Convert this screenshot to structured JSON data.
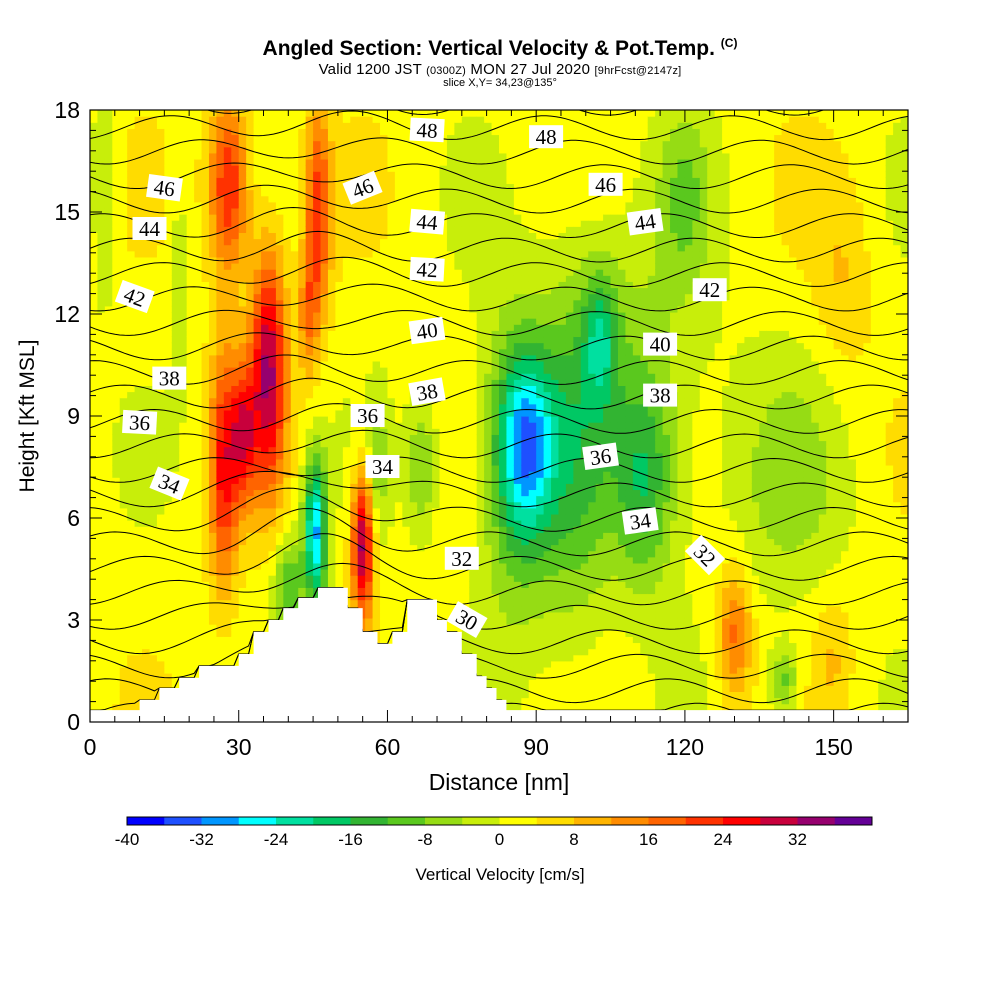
{
  "title": {
    "main": "Angled Section: Vertical Velocity & Pot.Temp.",
    "copyright": "(C)",
    "valid_prefix": "Valid 1200 JST",
    "valid_zulu": "(0300Z)",
    "valid_date": "MON 27 Jul 2020",
    "forecast": "[9hrFcst@2147z]",
    "slice": "slice X,Y= 34,23@135°"
  },
  "chart_data": {
    "type": "heatmap",
    "xlabel": "Distance [nm]",
    "ylabel": "Height [Kft MSL]",
    "xlim": [
      0,
      165
    ],
    "ylim": [
      0,
      18
    ],
    "x_ticks": [
      0,
      30,
      60,
      90,
      120,
      150
    ],
    "y_ticks": [
      0,
      3,
      6,
      9,
      12,
      15,
      18
    ],
    "colorbar": {
      "label": "Vertical Velocity [cm/s]",
      "ticks": [
        -40,
        -32,
        -24,
        -16,
        -8,
        0,
        8,
        16,
        24,
        32
      ],
      "levels": [
        -40,
        -36,
        -32,
        -28,
        -24,
        -20,
        -16,
        -12,
        -8,
        -4,
        0,
        4,
        8,
        12,
        16,
        20,
        24,
        28,
        32,
        36
      ],
      "colors": [
        "#0000ff",
        "#1e50ff",
        "#0096ff",
        "#00ffff",
        "#00e0a0",
        "#00c864",
        "#32b432",
        "#5ac81e",
        "#96dc14",
        "#c8ee0a",
        "#ffff00",
        "#ffdc00",
        "#ffb400",
        "#ff8c00",
        "#ff6400",
        "#ff3200",
        "#ff0000",
        "#c8003c",
        "#96006e",
        "#640096"
      ]
    },
    "terrain_profile": [
      [
        0,
        0.35
      ],
      [
        10,
        0.35
      ],
      [
        10,
        0.65
      ],
      [
        14,
        0.65
      ],
      [
        14,
        1
      ],
      [
        18,
        1
      ],
      [
        18,
        1.3
      ],
      [
        22,
        1.3
      ],
      [
        22,
        1.65
      ],
      [
        30,
        1.65
      ],
      [
        30,
        2
      ],
      [
        33,
        2
      ],
      [
        33,
        2.65
      ],
      [
        36,
        2.65
      ],
      [
        36,
        3
      ],
      [
        39,
        3
      ],
      [
        39,
        3.35
      ],
      [
        42,
        3.35
      ],
      [
        42,
        3.65
      ],
      [
        46,
        3.65
      ],
      [
        46,
        3.95
      ],
      [
        52,
        3.95
      ],
      [
        52,
        3.35
      ],
      [
        55,
        3.35
      ],
      [
        55,
        2.65
      ],
      [
        58,
        2.65
      ],
      [
        58,
        2.3
      ],
      [
        61,
        2.3
      ],
      [
        61,
        2.65
      ],
      [
        64,
        2.65
      ],
      [
        64,
        3.6
      ],
      [
        70,
        3.6
      ],
      [
        70,
        3.0
      ],
      [
        72,
        3.0
      ],
      [
        72,
        2.65
      ],
      [
        75,
        2.65
      ],
      [
        75,
        2.0
      ],
      [
        78,
        2.0
      ],
      [
        78,
        1.35
      ],
      [
        80,
        1.35
      ],
      [
        80,
        1.0
      ],
      [
        82,
        1.0
      ],
      [
        82,
        0.65
      ],
      [
        84,
        0.65
      ],
      [
        84,
        0.35
      ],
      [
        165,
        0.35
      ]
    ],
    "velocity_cells": [
      {
        "x": 28,
        "y": 15.8,
        "rx": 4,
        "ry": 2.6,
        "w": 24
      },
      {
        "x": 27,
        "y": 7.5,
        "rx": 3,
        "ry": 3.6,
        "w": 22
      },
      {
        "x": 36,
        "y": 10.4,
        "rx": 3.6,
        "ry": 3.6,
        "w": 30
      },
      {
        "x": 31,
        "y": 8.5,
        "rx": 2.5,
        "ry": 2,
        "w": 20
      },
      {
        "x": 46,
        "y": 15,
        "rx": 2.6,
        "ry": 3.2,
        "w": 20
      },
      {
        "x": 44,
        "y": 12,
        "rx": 2,
        "ry": 2,
        "w": 12
      },
      {
        "x": 55,
        "y": 5.2,
        "rx": 2.2,
        "ry": 2.2,
        "w": 32
      },
      {
        "x": 130,
        "y": 2.6,
        "rx": 3.5,
        "ry": 2,
        "w": 16
      },
      {
        "x": 45.5,
        "y": 5.6,
        "rx": 2.3,
        "ry": 2.2,
        "w": -30
      },
      {
        "x": 88,
        "y": 8.2,
        "rx": 5.5,
        "ry": 2.6,
        "w": -22
      },
      {
        "x": 86,
        "y": 7.5,
        "rx": 8,
        "ry": 4.6,
        "w": -14
      },
      {
        "x": 98,
        "y": 8,
        "rx": 7,
        "ry": 6,
        "w": -10
      },
      {
        "x": 110,
        "y": 10,
        "rx": 14,
        "ry": 5,
        "w": -7
      },
      {
        "x": 103,
        "y": 11.3,
        "rx": 3.5,
        "ry": 2,
        "w": -14
      },
      {
        "x": 112,
        "y": 7,
        "rx": 6,
        "ry": 3,
        "w": -14
      },
      {
        "x": 67,
        "y": 7.5,
        "rx": 3,
        "ry": 2,
        "w": -10
      },
      {
        "x": 58,
        "y": 7.5,
        "rx": 2,
        "ry": 2,
        "w": -8
      },
      {
        "x": 140,
        "y": 7,
        "rx": 14,
        "ry": 4,
        "w": -6
      },
      {
        "x": 140,
        "y": 1.2,
        "rx": 3,
        "ry": 1,
        "w": -12
      },
      {
        "x": 120,
        "y": 15.5,
        "rx": 5,
        "ry": 2.5,
        "w": -8
      },
      {
        "x": 3,
        "y": 16,
        "rx": 2.5,
        "ry": 4,
        "w": -6
      },
      {
        "x": 18,
        "y": 13,
        "rx": 2,
        "ry": 3,
        "w": -6
      },
      {
        "x": 40,
        "y": 4,
        "rx": 3,
        "ry": 1.5,
        "w": -14
      },
      {
        "x": 152,
        "y": 13,
        "rx": 6,
        "ry": 3,
        "w": 6
      },
      {
        "x": 150,
        "y": 2,
        "rx": 4,
        "ry": 2,
        "w": 6
      }
    ],
    "theta_label_values": [
      30,
      32,
      34,
      36,
      38,
      40,
      42,
      44,
      46,
      48
    ],
    "isentropes": {
      "levels_K": [
        300,
        302,
        304,
        306,
        308,
        310,
        312,
        314,
        316,
        318,
        320,
        322,
        324,
        326,
        328,
        330,
        332,
        334,
        336,
        338,
        340,
        342,
        344,
        346,
        348,
        350
      ]
    }
  },
  "contour_labels": [
    {
      "text": "48",
      "x": 68,
      "y": 17.4,
      "angle": -3
    },
    {
      "text": "48",
      "x": 92,
      "y": 17.2,
      "angle": 0
    },
    {
      "text": "46",
      "x": 15,
      "y": 15.7,
      "angle": -8
    },
    {
      "text": "46",
      "x": 55,
      "y": 15.7,
      "angle": 22
    },
    {
      "text": "46",
      "x": 104,
      "y": 15.8,
      "angle": 0
    },
    {
      "text": "44",
      "x": 12,
      "y": 14.5,
      "angle": 0
    },
    {
      "text": "44",
      "x": 68,
      "y": 14.7,
      "angle": -5
    },
    {
      "text": "44",
      "x": 112,
      "y": 14.7,
      "angle": 8
    },
    {
      "text": "42",
      "x": 9,
      "y": 12.5,
      "angle": -20
    },
    {
      "text": "42",
      "x": 68,
      "y": 13.3,
      "angle": -3
    },
    {
      "text": "42",
      "x": 125,
      "y": 12.7,
      "angle": 0
    },
    {
      "text": "40",
      "x": 68,
      "y": 11.5,
      "angle": 8
    },
    {
      "text": "40",
      "x": 115,
      "y": 11.1,
      "angle": 0
    },
    {
      "text": "38",
      "x": 16,
      "y": 10.1,
      "angle": 0
    },
    {
      "text": "38",
      "x": 68,
      "y": 9.7,
      "angle": 10
    },
    {
      "text": "38",
      "x": 115,
      "y": 9.6,
      "angle": 0
    },
    {
      "text": "36",
      "x": 10,
      "y": 8.8,
      "angle": -3
    },
    {
      "text": "36",
      "x": 56,
      "y": 9.0,
      "angle": 0
    },
    {
      "text": "36",
      "x": 103,
      "y": 7.8,
      "angle": 8
    },
    {
      "text": "34",
      "x": 16,
      "y": 7.0,
      "angle": -22
    },
    {
      "text": "34",
      "x": 59,
      "y": 7.5,
      "angle": 0
    },
    {
      "text": "34",
      "x": 111,
      "y": 5.9,
      "angle": 8
    },
    {
      "text": "32",
      "x": 75,
      "y": 4.8,
      "angle": 0
    },
    {
      "text": "32",
      "x": 124,
      "y": 4.9,
      "angle": -45
    },
    {
      "text": "30",
      "x": 76,
      "y": 3.0,
      "angle": -30
    }
  ]
}
